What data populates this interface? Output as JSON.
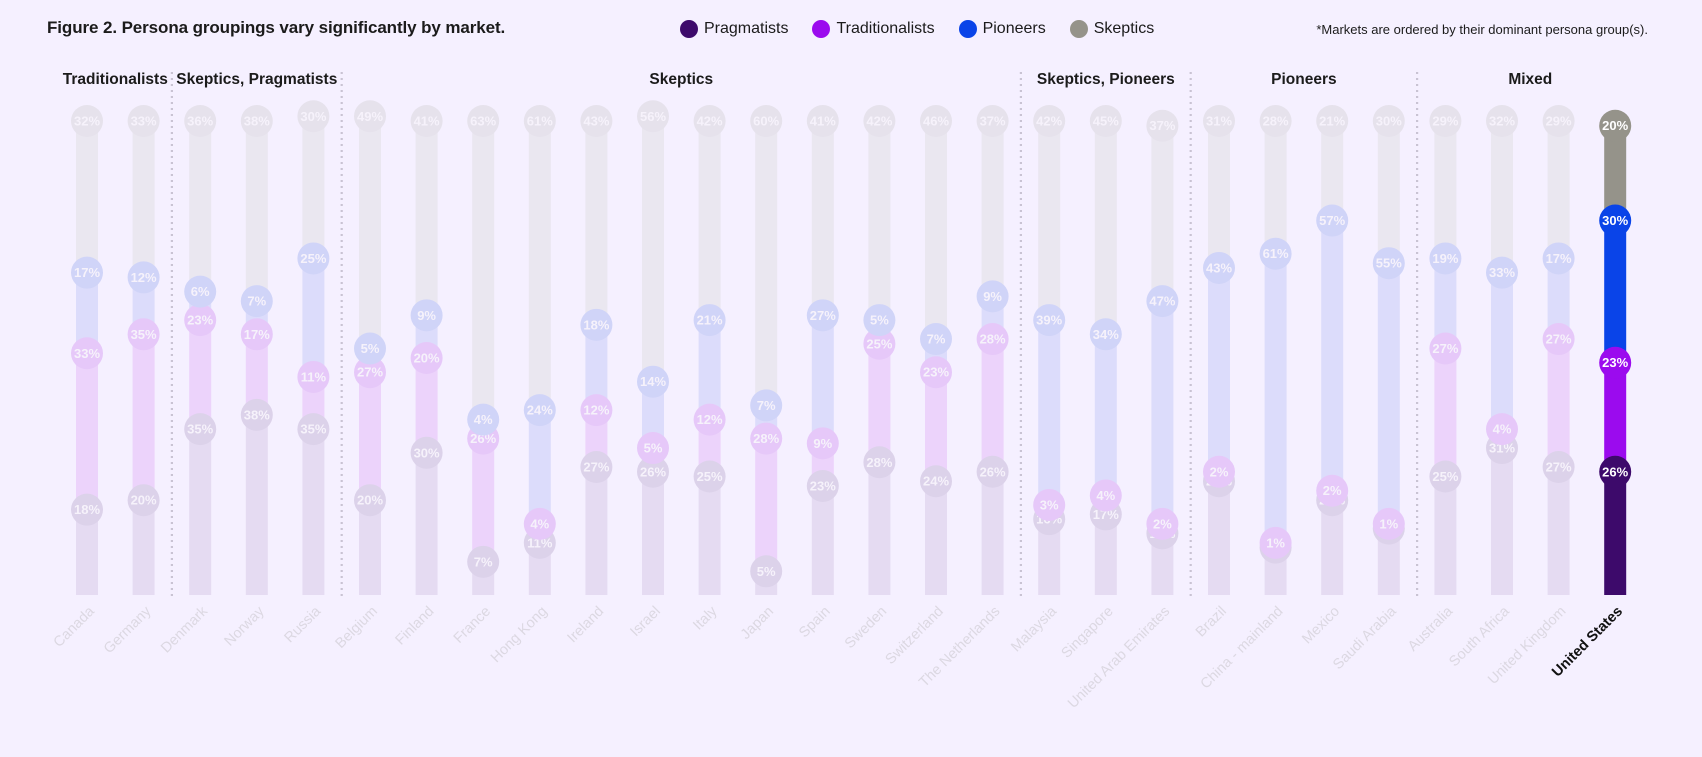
{
  "title": "Figure 2. Persona groupings vary significantly by market.",
  "note": "*Markets are ordered by their dominant persona group(s).",
  "legend": [
    {
      "name": "Pragmatists",
      "color": "#3d0a6b"
    },
    {
      "name": "Traditionalists",
      "color": "#9b0bee"
    },
    {
      "name": "Pioneers",
      "color": "#0a44e8"
    },
    {
      "name": "Skeptics",
      "color": "#95938a"
    }
  ],
  "chart_data": {
    "type": "bar",
    "stacked": true,
    "highlighted_market": "United States",
    "groups": [
      {
        "label": "Traditionalists",
        "count": 2
      },
      {
        "label": "Skeptics, Pragmatists",
        "count": 3
      },
      {
        "label": "Skeptics",
        "count": 12
      },
      {
        "label": "Skeptics, Pioneers",
        "count": 3
      },
      {
        "label": "Pioneers",
        "count": 4
      },
      {
        "label": "Mixed",
        "count": 4
      }
    ],
    "categories": [
      "Canada",
      "Germany",
      "Denmark",
      "Norway",
      "Russia",
      "Belgium",
      "Finland",
      "France",
      "Hong Kong",
      "Ireland",
      "Israel",
      "Italy",
      "Japan",
      "Spain",
      "Sweden",
      "Switzerland",
      "The Netherlands",
      "Malaysia",
      "Singapore",
      "United Arab Emirates",
      "Brazil",
      "China - mainland",
      "Mexico",
      "Saudi Arabia",
      "Australia",
      "South Africa",
      "United Kingdom",
      "United States"
    ],
    "series": [
      {
        "name": "Pragmatists",
        "color": "#3d0a6b",
        "values": [
          18,
          20,
          35,
          38,
          35,
          20,
          30,
          7,
          11,
          27,
          26,
          25,
          5,
          23,
          28,
          24,
          26,
          16,
          17,
          13,
          24,
          10,
          20,
          14,
          25,
          31,
          27,
          26
        ]
      },
      {
        "name": "Traditionalists",
        "color": "#9b0bee",
        "values": [
          33,
          35,
          23,
          17,
          11,
          27,
          20,
          26,
          4,
          12,
          5,
          12,
          28,
          9,
          25,
          23,
          28,
          3,
          4,
          2,
          2,
          1,
          2,
          1,
          27,
          4,
          27,
          23
        ]
      },
      {
        "name": "Pioneers",
        "color": "#0a44e8",
        "values": [
          17,
          12,
          6,
          7,
          25,
          5,
          9,
          4,
          24,
          18,
          14,
          21,
          7,
          27,
          5,
          7,
          9,
          39,
          34,
          47,
          43,
          61,
          57,
          55,
          19,
          33,
          17,
          30
        ]
      },
      {
        "name": "Skeptics",
        "color": "#95938a",
        "values": [
          32,
          33,
          36,
          38,
          30,
          49,
          41,
          63,
          61,
          43,
          56,
          42,
          60,
          41,
          42,
          46,
          37,
          42,
          45,
          37,
          31,
          28,
          21,
          30,
          29,
          32,
          29,
          20
        ]
      }
    ],
    "ylim": [
      0,
      100
    ]
  }
}
